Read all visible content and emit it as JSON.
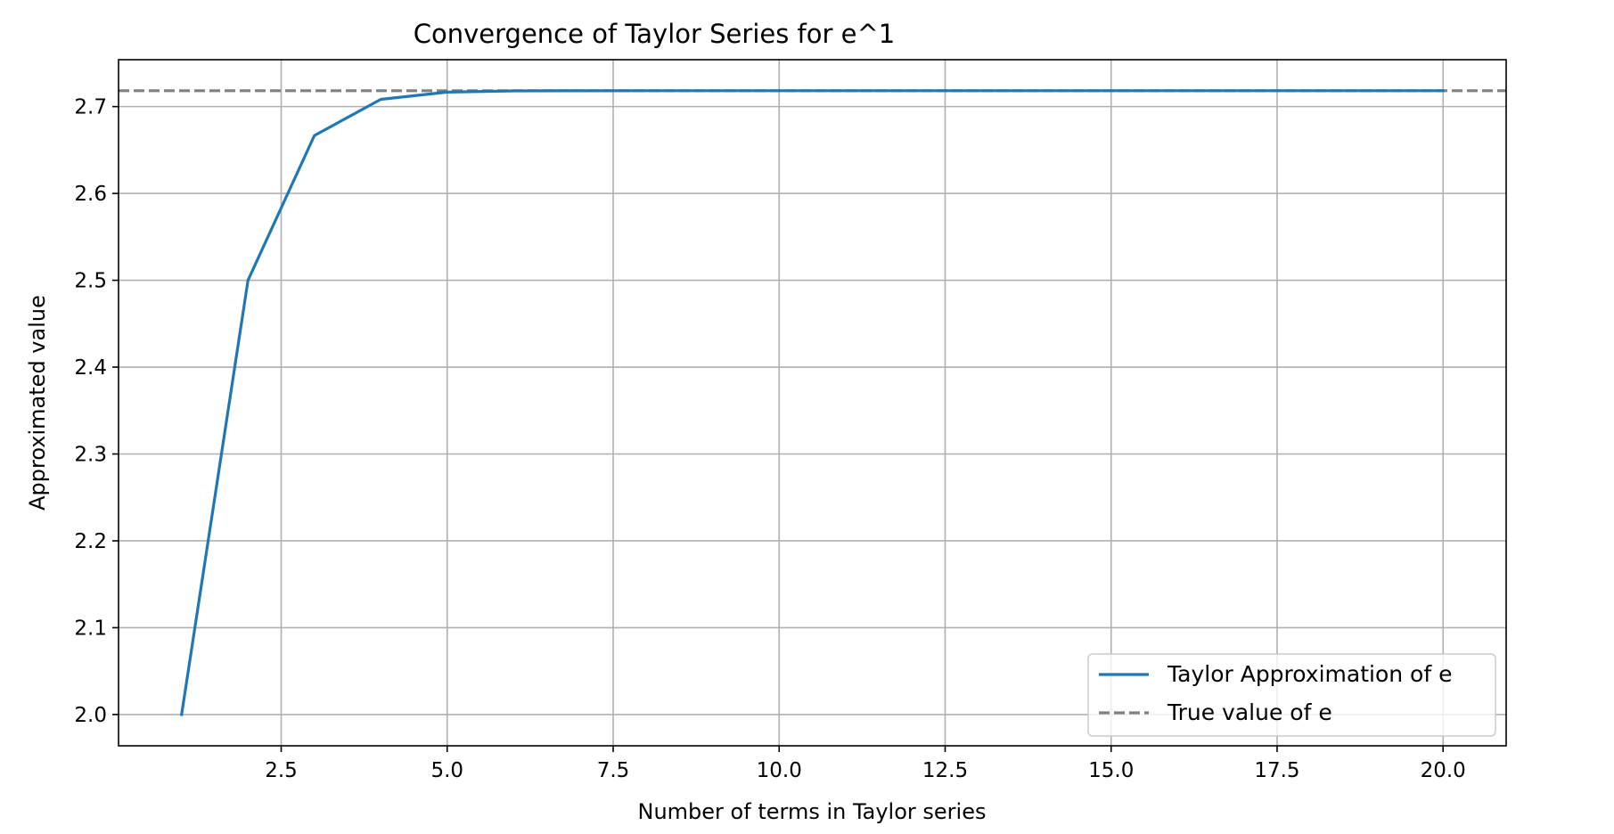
{
  "chart_data": {
    "type": "line",
    "title": "Convergence of Taylor Series for e^1",
    "xlabel": "Number of terms in Taylor series",
    "ylabel": "Approximated value",
    "xlim": [
      0.05,
      20.95
    ],
    "ylim": [
      1.964,
      2.754
    ],
    "xticks": [
      2.5,
      5.0,
      7.5,
      10.0,
      12.5,
      15.0,
      17.5,
      20.0
    ],
    "xtick_labels": [
      "2.5",
      "5.0",
      "7.5",
      "10.0",
      "12.5",
      "15.0",
      "17.5",
      "20.0"
    ],
    "yticks": [
      2.0,
      2.1,
      2.2,
      2.3,
      2.4,
      2.5,
      2.6,
      2.7
    ],
    "ytick_labels": [
      "2.0",
      "2.1",
      "2.2",
      "2.3",
      "2.4",
      "2.5",
      "2.6",
      "2.7"
    ],
    "grid": true,
    "legend_position": "lower-right",
    "series": [
      {
        "name": "Taylor Approximation of e",
        "color": "#1f77b4",
        "style": "solid",
        "x": [
          1,
          2,
          3,
          4,
          5,
          6,
          7,
          8,
          9,
          10,
          11,
          12,
          13,
          14,
          15,
          16,
          17,
          18,
          19,
          20
        ],
        "y": [
          2.0,
          2.5,
          2.66667,
          2.70833,
          2.71667,
          2.71806,
          2.71825,
          2.71828,
          2.71828,
          2.71828,
          2.71828,
          2.71828,
          2.71828,
          2.71828,
          2.71828,
          2.71828,
          2.71828,
          2.71828,
          2.71828,
          2.71828
        ]
      }
    ],
    "reference_lines": [
      {
        "name": "True value of e",
        "y": 2.71828,
        "color": "#808080",
        "style": "dashed"
      }
    ]
  }
}
